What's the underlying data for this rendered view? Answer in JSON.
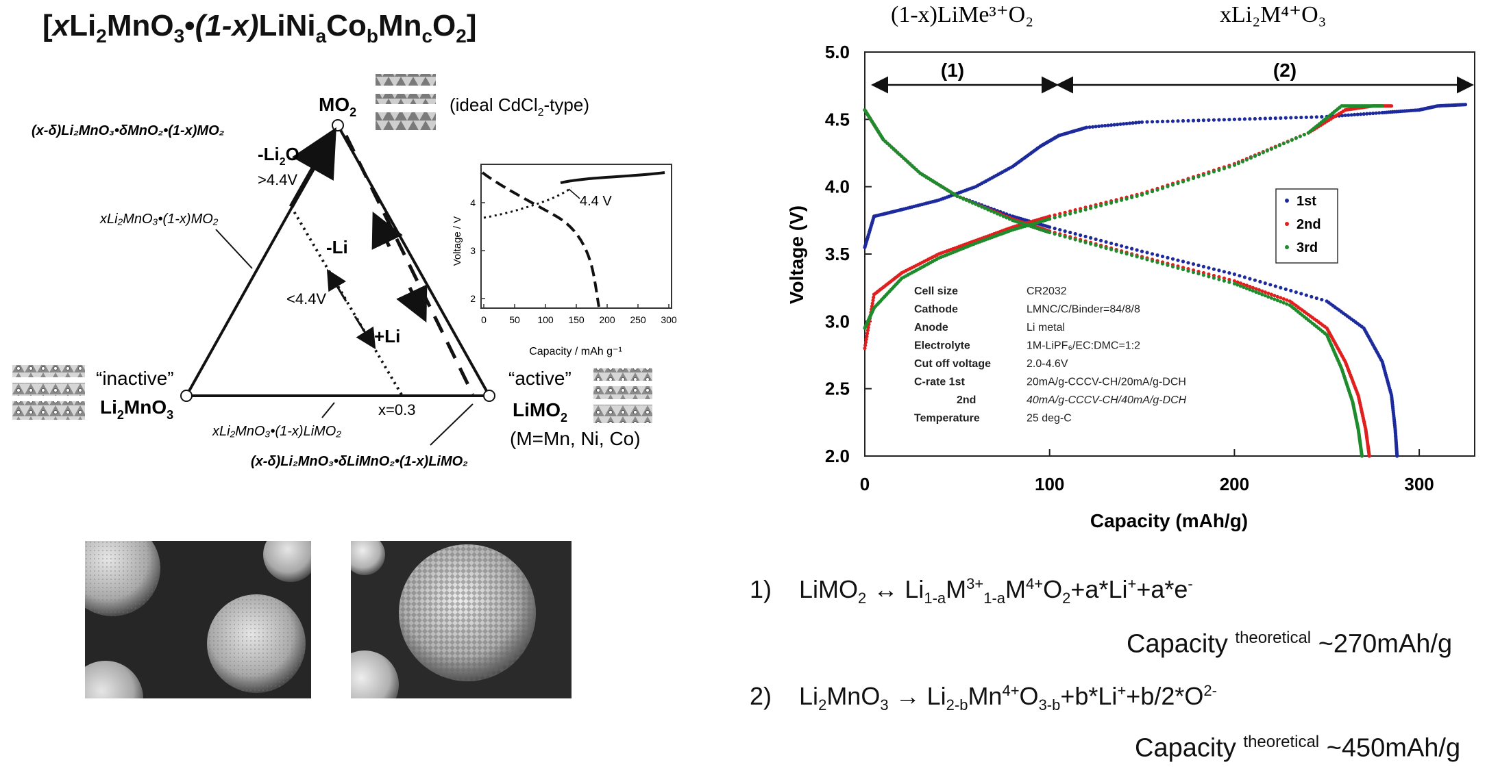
{
  "formula_title": {
    "open": "[",
    "x": "x",
    "p1": "Li",
    "p1_sub": "2",
    "p2": "MnO",
    "p2_sub": "3",
    "dot": "•",
    "one_minus_x": "(1-x)",
    "p3": "LiNi",
    "a": "a",
    "p4": "Co",
    "b": "b",
    "p5": "Mn",
    "c": "c",
    "p6": "O",
    "o_sub": "2",
    "close": "]"
  },
  "ternary": {
    "mo2_main": "MO",
    "mo2_sub": "2",
    "ideal_a": "(ideal CdCl",
    "ideal_sub": "2",
    "ideal_b": "-type)",
    "delta_mo2_label": "(x-δ)Li₂MnO₃•δMnO₂•(1-x)MO₂",
    "minus_li2o_a": "-Li",
    "minus_li2o_sub": "2",
    "minus_li2o_b": "O",
    "gt_44v": ">4.4V",
    "left_edge_label": "xLi₂MnO₃•(1-x)MO₂",
    "minus_li": "-Li",
    "lt_44v": "<4.4V",
    "plus_li": "+Li",
    "inactive_label": "“inactive”",
    "li2mno3_a": "Li",
    "li2mno3_sub": "2",
    "li2mno3_b": "MnO",
    "li2mno3_sub2": "3",
    "active_label": "“active”",
    "limo2_a": "LiMO",
    "limo2_sub": "2",
    "m_label": "(M=Mn, Ni, Co)",
    "x_eq": "x=0.3",
    "bottom_edge_label": "xLi₂MnO₃•(1-x)LiMO₂",
    "delta_limo2_label": "(x-δ)Li₂MnO₃•δLiMnO₂•(1-x)LiMO₂"
  },
  "inset_chart": {
    "ylabel": "Voltage / V",
    "xlabel": "Capacity / mAh g⁻¹",
    "annotation": "4.4 V",
    "x_ticks": [
      "0",
      "50",
      "100",
      "150",
      "200",
      "250",
      "300"
    ],
    "y_ticks": [
      "2",
      "3",
      "4"
    ]
  },
  "main_chart": {
    "header_left": "(1-x)LiMe³⁺O₂",
    "header_right": "xLi₂M⁴⁺O₃",
    "region1": "(1)",
    "region2": "(2)",
    "ylabel": "Voltage (V)",
    "xlabel": "Capacity (mAh/g)",
    "x_ticks": [
      "0",
      "100",
      "200",
      "300"
    ],
    "y_ticks": [
      "2.0",
      "2.5",
      "3.0",
      "3.5",
      "4.0",
      "4.5",
      "5.0"
    ],
    "legend": [
      {
        "label": "1st",
        "color": "#1c2a9c"
      },
      {
        "label": "2nd",
        "color": "#e01f1f"
      },
      {
        "label": "3rd",
        "color": "#1e8c2c"
      }
    ],
    "cell_info": [
      {
        "key": "Cell size",
        "value": "CR2032"
      },
      {
        "key": "Cathode",
        "value": "LMNC/C/Binder=84/8/8"
      },
      {
        "key": "Anode",
        "value": "Li metal"
      },
      {
        "key": "Electrolyte",
        "value": "1M-LiPF₆/EC:DMC=1:2"
      },
      {
        "key": "Cut off voltage",
        "value": "2.0-4.6V"
      },
      {
        "key": "C-rate 1st",
        "value": "20mA/g-CCCV-CH/20mA/g-DCH"
      },
      {
        "key": "2nd",
        "value": "40mA/g-CCCV-CH/40mA/g-DCH"
      },
      {
        "key": "Temperature",
        "value": "25 deg-C"
      }
    ]
  },
  "chart_data": {
    "type": "scatter",
    "xlabel": "Capacity (mAh/g)",
    "ylabel": "Voltage (V)",
    "xlim": [
      0,
      330
    ],
    "ylim": [
      2.0,
      5.0
    ],
    "legend_position": "right",
    "grid": false,
    "series": [
      {
        "name": "1st",
        "color": "#1c2a9c",
        "charge": {
          "x": [
            0,
            5,
            20,
            40,
            60,
            80,
            95,
            105,
            120,
            150,
            200,
            250,
            280,
            300,
            310,
            325
          ],
          "y": [
            3.55,
            3.78,
            3.83,
            3.9,
            4.0,
            4.15,
            4.3,
            4.38,
            4.44,
            4.48,
            4.5,
            4.52,
            4.55,
            4.57,
            4.6,
            4.61
          ]
        },
        "discharge": {
          "x": [
            0,
            10,
            30,
            50,
            80,
            100,
            150,
            200,
            250,
            270,
            280,
            285,
            287,
            288
          ],
          "y": [
            4.57,
            4.35,
            4.1,
            3.93,
            3.78,
            3.7,
            3.52,
            3.35,
            3.15,
            2.95,
            2.7,
            2.45,
            2.2,
            2.0
          ]
        }
      },
      {
        "name": "2nd",
        "color": "#e01f1f",
        "charge": {
          "x": [
            0,
            5,
            20,
            40,
            60,
            80,
            100,
            150,
            200,
            240,
            260,
            275,
            285
          ],
          "y": [
            2.8,
            3.2,
            3.36,
            3.5,
            3.6,
            3.7,
            3.78,
            3.95,
            4.17,
            4.4,
            4.57,
            4.6,
            4.6
          ]
        },
        "discharge": {
          "x": [
            0,
            10,
            30,
            50,
            80,
            100,
            150,
            200,
            230,
            250,
            260,
            267,
            271,
            273
          ],
          "y": [
            4.57,
            4.35,
            4.1,
            3.93,
            3.76,
            3.67,
            3.48,
            3.3,
            3.15,
            2.95,
            2.7,
            2.45,
            2.2,
            2.0
          ]
        }
      },
      {
        "name": "3rd",
        "color": "#1e8c2c",
        "charge": {
          "x": [
            0,
            5,
            20,
            40,
            60,
            80,
            100,
            150,
            200,
            240,
            258,
            270,
            280
          ],
          "y": [
            2.95,
            3.1,
            3.32,
            3.47,
            3.58,
            3.68,
            3.76,
            3.94,
            4.16,
            4.4,
            4.6,
            4.6,
            4.6
          ]
        },
        "discharge": {
          "x": [
            0,
            10,
            30,
            50,
            80,
            100,
            150,
            200,
            230,
            250,
            258,
            264,
            267,
            269
          ],
          "y": [
            4.57,
            4.35,
            4.1,
            3.93,
            3.75,
            3.66,
            3.47,
            3.28,
            3.12,
            2.9,
            2.65,
            2.4,
            2.2,
            2.0
          ]
        }
      }
    ]
  },
  "equations": {
    "eq1_num": "1)",
    "eq1_lhs": "LiMO",
    "eq1_lhs_sub": "2",
    "eq1_arrow": "↔",
    "eq1_r1": "Li",
    "eq1_r1_sub": "1-a",
    "eq1_r2": "M",
    "eq1_r2_sup": "3+",
    "eq1_r2_sub": "1-a",
    "eq1_r3": "M",
    "eq1_r3_sup": "4+",
    "eq1_r4": "O",
    "eq1_r4_sub": "2",
    "eq1_r5": "+a*Li",
    "eq1_r5_sup": "+",
    "eq1_r6": "+a*e",
    "eq1_r6_sup": "-",
    "cap1_a": "Capacity",
    "cap1_sup": "theoretical",
    "cap1_b": "~270mAh/g",
    "eq2_num": "2)",
    "eq2_lhs": "Li",
    "eq2_lhs_sub": "2",
    "eq2_lhs2": "MnO",
    "eq2_lhs2_sub": "3",
    "eq2_arrow": "→",
    "eq2_r1": "Li",
    "eq2_r1_sub": "2-b",
    "eq2_r2": "Mn",
    "eq2_r2_sup": "4+",
    "eq2_r3": "O",
    "eq2_r3_sub": "3-b",
    "eq2_r4": "+b*Li",
    "eq2_r4_sup": "+",
    "eq2_r5": "+b/2*O",
    "eq2_r5_sup": "2-",
    "cap2_a": "Capacity",
    "cap2_sup": "theoretical",
    "cap2_b": "~450mAh/g"
  }
}
